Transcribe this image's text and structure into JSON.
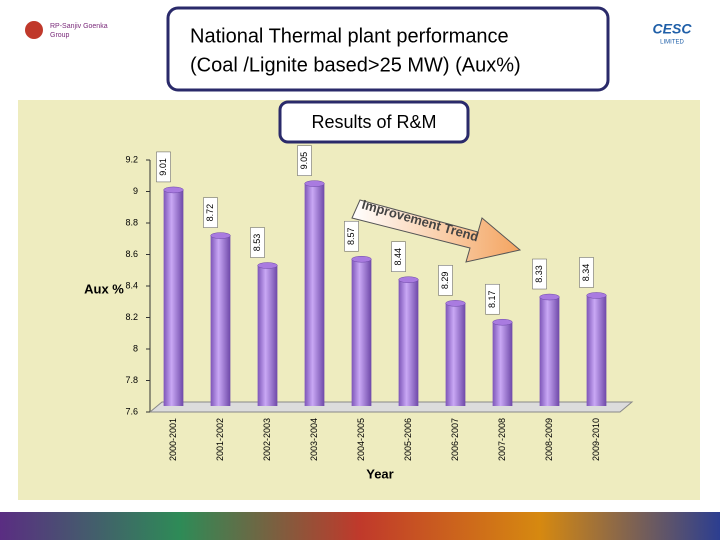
{
  "logos": {
    "left": [
      "RP-Sanjiv Goenka",
      "Group"
    ],
    "right": [
      "CESC",
      "LIMITED"
    ]
  },
  "chart_data": {
    "type": "bar",
    "title": [
      "National Thermal plant performance",
      "(Coal /Lignite based>25 MW) (Aux%)"
    ],
    "subtitle": "Results of R&M",
    "annotation": "Improvement Trend",
    "x_label": "Year",
    "y_label": "Aux %",
    "categories": [
      "2000-2001",
      "2001-2002",
      "2002-2003",
      "2003-2004",
      "2004-2005",
      "2005-2006",
      "2006-2007",
      "2007-2008",
      "2008-2009",
      "2009-2010"
    ],
    "values": [
      9.01,
      8.72,
      8.53,
      9.05,
      8.57,
      8.44,
      8.29,
      8.17,
      8.33,
      8.34
    ],
    "color": "#a97be0",
    "ylim": [
      7.6,
      9.2
    ],
    "yticks": [
      7.6,
      7.8,
      8,
      8.2,
      8.4,
      8.6,
      8.8,
      9,
      9.2
    ]
  }
}
